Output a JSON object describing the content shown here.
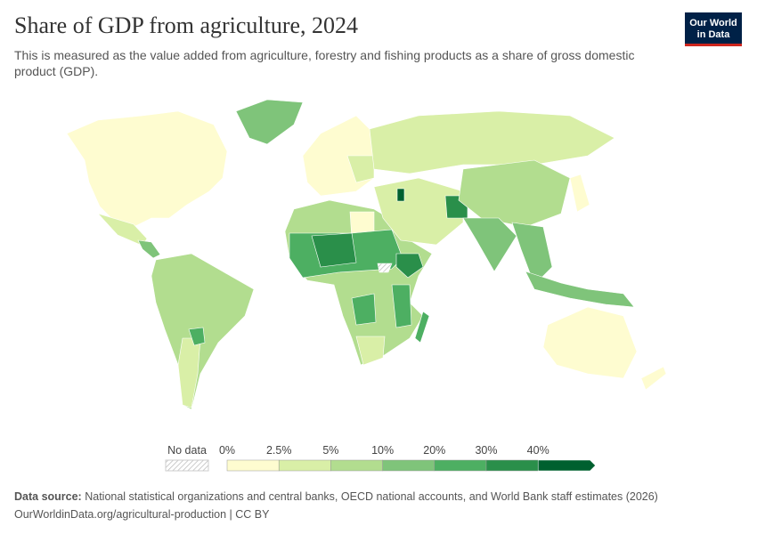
{
  "header": {
    "title": "Share of GDP from agriculture, 2024",
    "subtitle": "This is measured as the value added from agriculture, forestry and fishing products as a share of gross domestic product (GDP).",
    "logo": [
      "Our World",
      "in Data"
    ]
  },
  "legend": {
    "no_data": "No data",
    "labels": [
      "0%",
      "2.5%",
      "5%",
      "10%",
      "20%",
      "30%",
      "40%"
    ],
    "colors": [
      "#fefcd0",
      "#d9efa7",
      "#b2dd8f",
      "#7fc47a",
      "#4daf62",
      "#2a8f4a",
      "#00602f"
    ]
  },
  "footer": {
    "source_label": "Data source:",
    "source": "National statistical organizations and central banks, OECD national accounts, and World Bank staff estimates (2026)",
    "url": "OurWorldinData.org/agricultural-production | CC BY"
  }
}
